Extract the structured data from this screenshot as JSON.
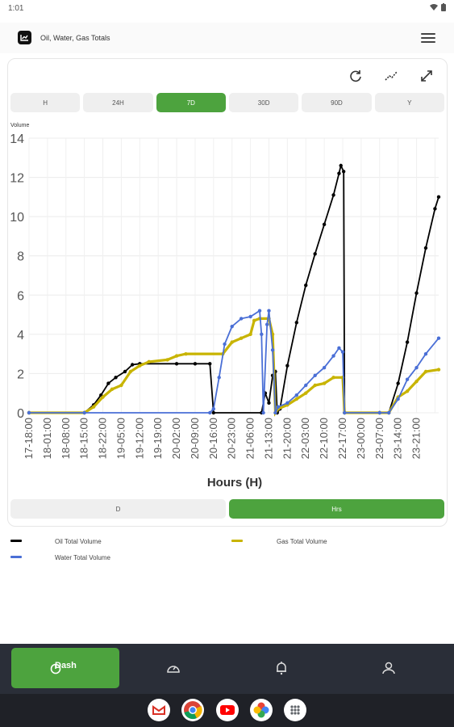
{
  "status_bar": {
    "time": "1:01"
  },
  "header": {
    "title": "Oil, Water, Gas Totals"
  },
  "time_ranges": [
    "H",
    "24H",
    "7D",
    "30D",
    "90D",
    "Y"
  ],
  "active_range": "7D",
  "units": [
    "D",
    "Hrs"
  ],
  "active_unit": "Hrs",
  "nav": {
    "dash_label": "Dash"
  },
  "colors": {
    "oil": "#000000",
    "gas": "#c8b400",
    "water": "#4a6fd6",
    "accent": "#4da33e"
  },
  "chart_data": {
    "type": "line",
    "title": "",
    "ylabel": "Volume",
    "xlabel": "Hours (H)",
    "ylim": [
      0,
      14
    ],
    "yticks": [
      0,
      2,
      4,
      6,
      8,
      10,
      12,
      14
    ],
    "x_tick_labels": [
      "17-18:00",
      "18-01:00",
      "18-08:00",
      "18-15:00",
      "18-22:00",
      "19-05:00",
      "19-12:00",
      "19-19:00",
      "20-02:00",
      "20-09:00",
      "20-16:00",
      "20-23:00",
      "21-06:00",
      "21-13:00",
      "21-20:00",
      "22-03:00",
      "22-10:00",
      "22-17:00",
      "23-00:00",
      "23-07:00",
      "23-14:00",
      "23-21:00"
    ],
    "series": [
      {
        "name": "Oil Total Volume",
        "color": "#000000",
        "points": [
          [
            0,
            0
          ],
          [
            3.0,
            0
          ],
          [
            3.5,
            0.4
          ],
          [
            3.9,
            0.9
          ],
          [
            4.3,
            1.5
          ],
          [
            4.7,
            1.8
          ],
          [
            5.2,
            2.1
          ],
          [
            5.6,
            2.45
          ],
          [
            6.0,
            2.5
          ],
          [
            8.0,
            2.5
          ],
          [
            9.0,
            2.5
          ],
          [
            9.8,
            2.5
          ],
          [
            10.0,
            0
          ],
          [
            12.6,
            0
          ],
          [
            12.8,
            1.0
          ],
          [
            13.0,
            0.5
          ],
          [
            13.2,
            1.9
          ],
          [
            13.35,
            2.1
          ],
          [
            13.45,
            0
          ],
          [
            13.6,
            0.2
          ],
          [
            14.0,
            2.4
          ],
          [
            14.5,
            4.6
          ],
          [
            15.0,
            6.5
          ],
          [
            15.5,
            8.1
          ],
          [
            16.0,
            9.6
          ],
          [
            16.5,
            11.1
          ],
          [
            16.8,
            12.2
          ],
          [
            16.9,
            12.6
          ],
          [
            17.05,
            12.3
          ],
          [
            17.1,
            0
          ],
          [
            19.0,
            0
          ],
          [
            19.5,
            0
          ],
          [
            20.0,
            1.5
          ],
          [
            20.5,
            3.6
          ],
          [
            21.0,
            6.1
          ],
          [
            21.5,
            8.4
          ],
          [
            22.0,
            10.4
          ],
          [
            22.2,
            11.0
          ]
        ]
      },
      {
        "name": "Gas Total Volume",
        "color": "#c8b400",
        "points": [
          [
            0,
            0
          ],
          [
            3.0,
            0
          ],
          [
            3.5,
            0.3
          ],
          [
            4.0,
            0.8
          ],
          [
            4.5,
            1.2
          ],
          [
            5.0,
            1.4
          ],
          [
            5.5,
            2.1
          ],
          [
            6.0,
            2.4
          ],
          [
            6.5,
            2.6
          ],
          [
            7.5,
            2.7
          ],
          [
            8.0,
            2.9
          ],
          [
            8.5,
            3.0
          ],
          [
            10.5,
            3.0
          ],
          [
            11.0,
            3.6
          ],
          [
            11.5,
            3.8
          ],
          [
            12.0,
            4.0
          ],
          [
            12.2,
            4.7
          ],
          [
            12.5,
            4.8
          ],
          [
            13.0,
            4.8
          ],
          [
            13.2,
            4.0
          ],
          [
            13.35,
            0
          ],
          [
            13.5,
            0.2
          ],
          [
            14.0,
            0.4
          ],
          [
            14.5,
            0.7
          ],
          [
            15.0,
            1.0
          ],
          [
            15.5,
            1.4
          ],
          [
            16.0,
            1.5
          ],
          [
            16.5,
            1.8
          ],
          [
            17.0,
            1.8
          ],
          [
            17.1,
            0
          ],
          [
            19.0,
            0
          ],
          [
            19.5,
            0
          ],
          [
            20.0,
            0.8
          ],
          [
            20.5,
            1.1
          ],
          [
            21.0,
            1.6
          ],
          [
            21.5,
            2.1
          ],
          [
            22.2,
            2.2
          ]
        ]
      },
      {
        "name": "Water Total Volume",
        "color": "#4a6fd6",
        "points": [
          [
            0,
            0
          ],
          [
            3.0,
            0
          ],
          [
            9.8,
            0
          ],
          [
            10.0,
            0.2
          ],
          [
            10.3,
            1.8
          ],
          [
            10.6,
            3.5
          ],
          [
            11.0,
            4.4
          ],
          [
            11.5,
            4.8
          ],
          [
            12.0,
            4.9
          ],
          [
            12.5,
            5.2
          ],
          [
            12.6,
            4.0
          ],
          [
            12.7,
            0
          ],
          [
            12.9,
            4.5
          ],
          [
            13.0,
            5.2
          ],
          [
            13.2,
            3.2
          ],
          [
            13.35,
            0
          ],
          [
            13.5,
            0.3
          ],
          [
            14.0,
            0.5
          ],
          [
            14.5,
            0.9
          ],
          [
            15.0,
            1.4
          ],
          [
            15.5,
            1.9
          ],
          [
            16.0,
            2.3
          ],
          [
            16.5,
            2.9
          ],
          [
            16.8,
            3.3
          ],
          [
            17.0,
            3.1
          ],
          [
            17.1,
            0
          ],
          [
            19.0,
            0
          ],
          [
            19.5,
            0
          ],
          [
            20.0,
            0.7
          ],
          [
            20.5,
            1.7
          ],
          [
            21.0,
            2.3
          ],
          [
            21.5,
            3.0
          ],
          [
            22.2,
            3.8
          ]
        ]
      }
    ],
    "grid": true,
    "legend_position": "bottom"
  }
}
